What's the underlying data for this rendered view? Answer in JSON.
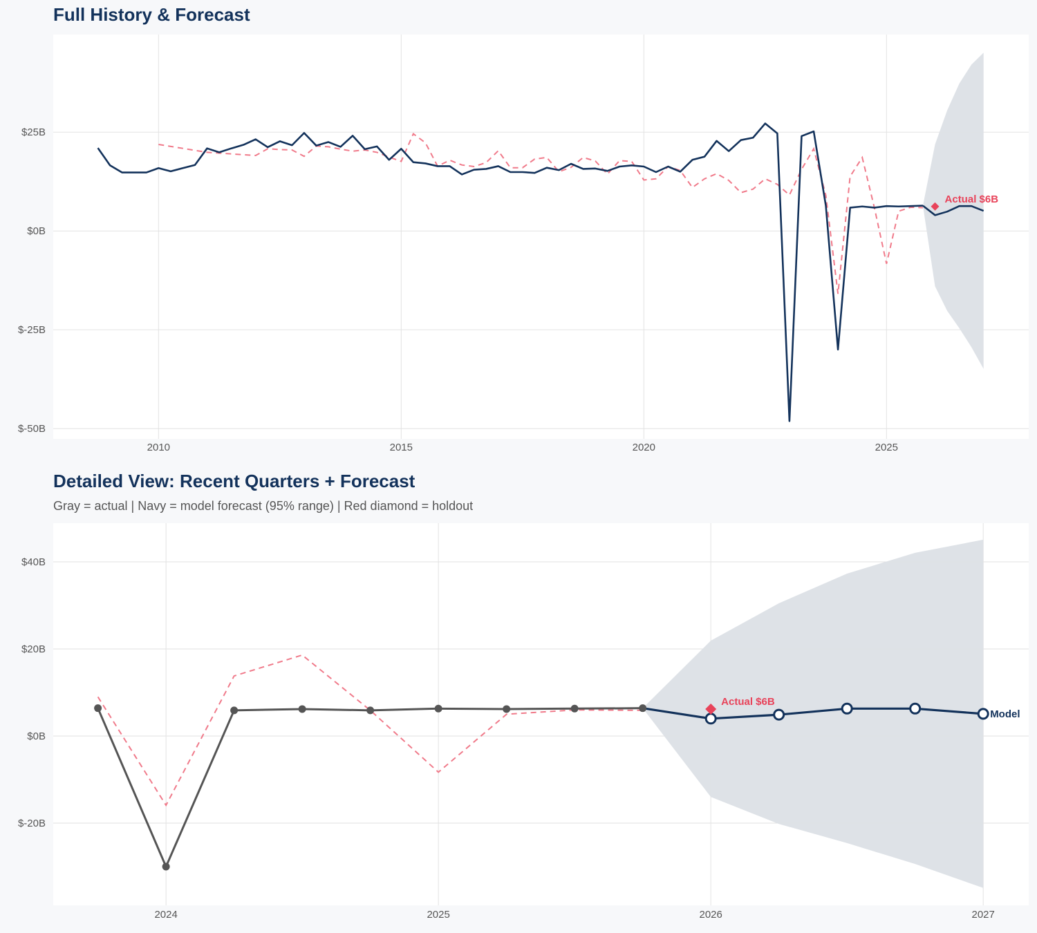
{
  "colors": {
    "navy": "#13325b",
    "red": "#e8435a",
    "red_dashed": "#f07a8a",
    "gray_actual": "#555555",
    "band": "#dce0e6",
    "grid": "#e2e2e2",
    "background": "#f7f8fa"
  },
  "chart_data": [
    {
      "type": "line",
      "title": "Full History & Forecast",
      "xlim": [
        2007.83,
        2027.93
      ],
      "ylim": [
        -52.6,
        49.7
      ],
      "x_ticks": [
        2010,
        2015,
        2020,
        2025
      ],
      "x_tick_labels": [
        "2010",
        "2015",
        "2020",
        "2025"
      ],
      "y_ticks": [
        25,
        0,
        -25,
        -50
      ],
      "y_tick_labels": [
        "$25B",
        "$0B",
        "$-25B",
        "$-50B"
      ],
      "grid": true,
      "series": [
        {
          "role": "actual",
          "style": "solid navy",
          "x": [
            2008.75,
            2009,
            2009.25,
            2009.5,
            2009.75,
            2010,
            2010.25,
            2010.5,
            2010.75,
            2011,
            2011.25,
            2011.5,
            2011.75,
            2012,
            2012.25,
            2012.5,
            2012.75,
            2013,
            2013.25,
            2013.5,
            2013.75,
            2014,
            2014.25,
            2014.5,
            2014.75,
            2015,
            2015.25,
            2015.5,
            2015.75,
            2016,
            2016.25,
            2016.5,
            2016.75,
            2017,
            2017.25,
            2017.5,
            2017.75,
            2018,
            2018.25,
            2018.5,
            2018.75,
            2019,
            2019.25,
            2019.5,
            2019.75,
            2020,
            2020.25,
            2020.5,
            2020.75,
            2021,
            2021.25,
            2021.5,
            2021.75,
            2022,
            2022.25,
            2022.5,
            2022.75,
            2023,
            2023.25,
            2023.5,
            2023.75,
            2024,
            2024.25,
            2024.5,
            2024.75,
            2025,
            2025.25,
            2025.5,
            2025.75
          ],
          "y": [
            21.0,
            16.6,
            14.8,
            14.8,
            14.8,
            15.9,
            15.1,
            15.9,
            16.7,
            20.9,
            19.9,
            20.9,
            21.8,
            23.2,
            21.2,
            22.7,
            21.7,
            24.8,
            21.6,
            22.5,
            21.3,
            24.1,
            20.7,
            21.4,
            18.0,
            20.8,
            17.4,
            17.1,
            16.4,
            16.4,
            14.3,
            15.5,
            15.7,
            16.4,
            14.9,
            14.9,
            14.7,
            16.0,
            15.4,
            17.0,
            15.7,
            15.8,
            15.2,
            16.3,
            16.6,
            16.3,
            14.9,
            16.3,
            15.0,
            18.0,
            18.8,
            22.8,
            20.2,
            23.0,
            23.6,
            27.2,
            24.7,
            -48.1,
            24.0,
            25.2,
            6.4,
            -30.0,
            5.9,
            6.2,
            5.9,
            6.3,
            6.2,
            6.3,
            6.4
          ]
        },
        {
          "role": "comparison",
          "style": "dashed red",
          "x": [
            2010,
            2010.25,
            2010.5,
            2010.75,
            2011,
            2011.25,
            2011.5,
            2011.75,
            2012,
            2012.25,
            2012.5,
            2012.75,
            2013,
            2013.25,
            2013.5,
            2013.75,
            2014,
            2014.25,
            2014.5,
            2014.75,
            2015,
            2015.25,
            2015.5,
            2015.75,
            2016,
            2016.25,
            2016.5,
            2016.75,
            2017,
            2017.25,
            2017.5,
            2017.75,
            2018,
            2018.25,
            2018.5,
            2018.75,
            2019,
            2019.25,
            2019.5,
            2019.75,
            2020,
            2020.25,
            2020.5,
            2020.75,
            2021,
            2021.25,
            2021.5,
            2021.75,
            2022,
            2022.25,
            2022.5,
            2022.75,
            2023,
            2023.25,
            2023.5,
            2023.75,
            2024,
            2024.25,
            2024.5,
            2024.75,
            2025,
            2025.25,
            2025.5,
            2025.75
          ],
          "y": [
            21.9,
            21.4,
            20.9,
            20.4,
            19.9,
            19.7,
            19.5,
            19.3,
            19.1,
            20.8,
            20.6,
            20.5,
            18.9,
            21.5,
            21.3,
            20.7,
            20.2,
            20.5,
            19.9,
            18.7,
            17.6,
            24.6,
            22.3,
            16.4,
            17.9,
            16.7,
            16.3,
            17.3,
            20.3,
            16.0,
            16.0,
            18.2,
            18.6,
            15.0,
            16.1,
            18.6,
            17.7,
            14.4,
            17.8,
            17.6,
            12.9,
            13.2,
            16.3,
            15.3,
            11.0,
            13.2,
            14.5,
            12.8,
            9.7,
            10.6,
            13.2,
            11.8,
            9.1,
            15.6,
            20.8,
            9.0,
            -15.9,
            13.8,
            18.6,
            5.9,
            -8.3,
            5.0,
            6.0,
            5.9
          ]
        },
        {
          "role": "forecast",
          "style": "solid navy",
          "x": [
            2025.75,
            2026,
            2026.25,
            2026.5,
            2026.75,
            2027
          ],
          "y": [
            6.4,
            4.0,
            4.9,
            6.3,
            6.3,
            5.1
          ]
        }
      ],
      "band_95": {
        "x": [
          2025.75,
          2026,
          2026.25,
          2026.5,
          2026.75,
          2027
        ],
        "upper": [
          6.4,
          21.9,
          30.5,
          37.3,
          42.1,
          45.1
        ],
        "lower": [
          6.4,
          -14.0,
          -20.2,
          -24.6,
          -29.4,
          -34.9
        ]
      },
      "holdout": {
        "x": 2026.0,
        "y": 6.2,
        "label": "Actual $6B"
      }
    },
    {
      "type": "line",
      "title": "Detailed View: Recent Quarters + Forecast",
      "subtitle": "Gray = actual  |  Navy = model forecast (95% range)  |  Red diamond = holdout",
      "xlim": [
        2023.586,
        2027.167
      ],
      "ylim": [
        -38.9,
        48.9
      ],
      "x_ticks": [
        2024,
        2025,
        2026,
        2027
      ],
      "x_tick_labels": [
        "2024",
        "2025",
        "2026",
        "2027"
      ],
      "y_ticks": [
        40,
        20,
        0,
        -20
      ],
      "y_tick_labels": [
        "$40B",
        "$20B",
        "$0B",
        "$-20B"
      ],
      "grid": true,
      "series": [
        {
          "role": "actual",
          "style": "solid gray with dots",
          "x": [
            2023.75,
            2024,
            2024.25,
            2024.5,
            2024.75,
            2025,
            2025.25,
            2025.5,
            2025.75
          ],
          "y": [
            6.4,
            -30.0,
            5.9,
            6.2,
            5.9,
            6.3,
            6.2,
            6.3,
            6.4
          ]
        },
        {
          "role": "comparison",
          "style": "dashed red",
          "x": [
            2023.75,
            2024,
            2024.25,
            2024.5,
            2024.75,
            2025,
            2025.25,
            2025.5,
            2025.75
          ],
          "y": [
            9.0,
            -15.9,
            13.8,
            18.6,
            5.9,
            -8.3,
            5.0,
            6.0,
            5.9
          ]
        },
        {
          "role": "forecast",
          "style": "solid navy open circles",
          "label": "Model",
          "x": [
            2025.75,
            2026,
            2026.25,
            2026.5,
            2026.75,
            2027
          ],
          "y": [
            6.4,
            4.0,
            4.9,
            6.3,
            6.3,
            5.1
          ]
        }
      ],
      "band_95": {
        "x": [
          2025.75,
          2026,
          2026.25,
          2026.5,
          2026.75,
          2027
        ],
        "upper": [
          6.4,
          21.9,
          30.5,
          37.3,
          42.1,
          45.1
        ],
        "lower": [
          6.4,
          -14.0,
          -20.2,
          -24.6,
          -29.4,
          -34.9
        ]
      },
      "holdout": {
        "x": 2026.0,
        "y": 6.2,
        "label": "Actual $6B"
      }
    }
  ]
}
